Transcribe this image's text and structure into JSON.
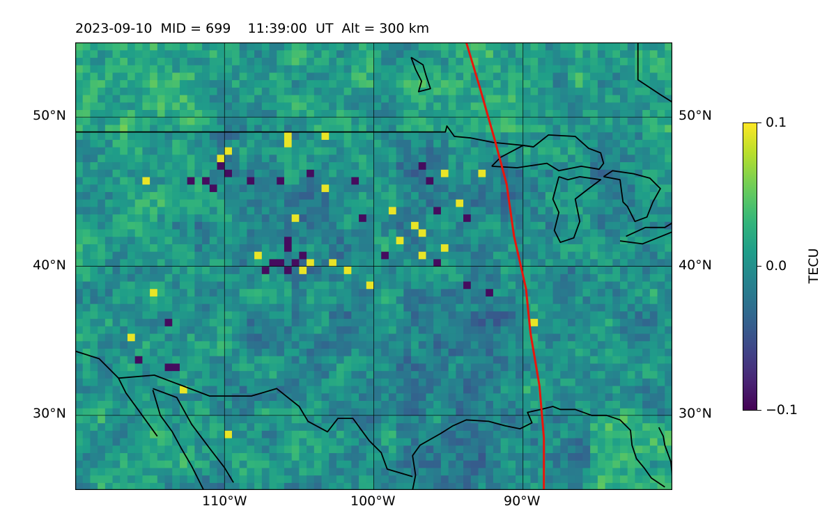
{
  "title": "2023-09-10  MID = 699    11:39:00  UT  Alt = 300 km",
  "map": {
    "projection": "plate-carree",
    "extent": {
      "lon_min": -120,
      "lon_max": -80,
      "lat_min": 25,
      "lat_max": 55
    },
    "lon_ticks": [
      {
        "value": -110,
        "label": "110°W"
      },
      {
        "value": -100,
        "label": "100°W"
      },
      {
        "value": -90,
        "label": "90°W"
      }
    ],
    "lat_ticks": [
      {
        "value": 30,
        "label": "30°N"
      },
      {
        "value": 40,
        "label": "40°N"
      },
      {
        "value": 50,
        "label": "50°N"
      }
    ],
    "gridlines": true,
    "coastlines": true,
    "borders": true,
    "terminator_color": "#e8160c",
    "coastline_color": "#000000",
    "colormap": "viridis",
    "cell_size_deg": 0.5
  },
  "colorbar": {
    "label": "TECU",
    "min": -0.1,
    "max": 0.1,
    "ticks": [
      {
        "value": 0.1,
        "label": "0.1"
      },
      {
        "value": 0.0,
        "label": "0.0"
      },
      {
        "value": -0.1,
        "label": "−0.1"
      }
    ]
  },
  "chart_data": {
    "type": "heatmap",
    "title": "2023-09-10  MID = 699    11:39:00  UT  Alt = 300 km",
    "xlabel": "",
    "ylabel": "",
    "xlim": [
      -120,
      -80
    ],
    "ylim": [
      25,
      55
    ],
    "value_label": "TECU",
    "vmin": -0.1,
    "vmax": 0.1,
    "colormap": "viridis",
    "grid": true,
    "legend": "colorbar right",
    "terminator_line": [
      [
        -93.8,
        55
      ],
      [
        -92.9,
        52
      ],
      [
        -91.9,
        48.5
      ],
      [
        -91.1,
        45.5
      ],
      [
        -90.6,
        42
      ],
      [
        -89.8,
        38.5
      ],
      [
        -89.5,
        35.5
      ],
      [
        -88.9,
        32
      ],
      [
        -88.6,
        28.5
      ],
      [
        -88.6,
        25
      ]
    ],
    "strong_positive_cells": [
      [
        -115.5,
        45.8
      ],
      [
        -114.7,
        38.2
      ],
      [
        -116.3,
        35.0
      ],
      [
        -113.0,
        31.5
      ],
      [
        -110.0,
        28.6
      ],
      [
        -109.8,
        47.6
      ],
      [
        -110.5,
        47.2
      ],
      [
        -106.0,
        48.8
      ],
      [
        -105.8,
        48.4
      ],
      [
        -103.5,
        48.6
      ],
      [
        -103.3,
        45.2
      ],
      [
        -105.5,
        43.4
      ],
      [
        -107.7,
        40.8
      ],
      [
        -107.5,
        39.8
      ],
      [
        -104.3,
        40.0
      ],
      [
        -104.8,
        39.7
      ],
      [
        -103.0,
        40.0
      ],
      [
        -101.8,
        39.8
      ],
      [
        -100.5,
        38.5
      ],
      [
        -98.8,
        43.8
      ],
      [
        -98.2,
        41.7
      ],
      [
        -97.5,
        42.5
      ],
      [
        -96.7,
        42.3
      ],
      [
        -95.4,
        41.0
      ],
      [
        -94.5,
        44.0
      ],
      [
        -93.0,
        46.0
      ],
      [
        -95.5,
        46.0
      ],
      [
        -89.5,
        36.0
      ],
      [
        -97.0,
        40.8
      ]
    ],
    "strong_negative_cells": [
      [
        -112.1,
        45.9
      ],
      [
        -111.5,
        45.7
      ],
      [
        -111.0,
        45.4
      ],
      [
        -110.5,
        46.5
      ],
      [
        -109.8,
        46.0
      ],
      [
        -108.5,
        45.6
      ],
      [
        -106.5,
        45.6
      ],
      [
        -104.5,
        46.0
      ],
      [
        -106.0,
        41.8
      ],
      [
        -105.8,
        41.2
      ],
      [
        -106.3,
        40.3
      ],
      [
        -105.8,
        39.9
      ],
      [
        -105.2,
        40.1
      ],
      [
        -106.8,
        40.0
      ],
      [
        -107.3,
        39.8
      ],
      [
        -104.8,
        40.5
      ],
      [
        -113.6,
        36.0
      ],
      [
        -116.0,
        33.8
      ],
      [
        -113.8,
        33.1
      ],
      [
        -113.2,
        33.2
      ],
      [
        -100.8,
        43.0
      ],
      [
        -99.5,
        40.5
      ],
      [
        -97.0,
        46.7
      ],
      [
        -96.5,
        45.5
      ],
      [
        -95.8,
        43.8
      ],
      [
        -94.0,
        43.2
      ],
      [
        -96.0,
        40.2
      ],
      [
        -92.5,
        38.3
      ],
      [
        -94.0,
        38.9
      ],
      [
        -101.2,
        45.6
      ]
    ]
  }
}
